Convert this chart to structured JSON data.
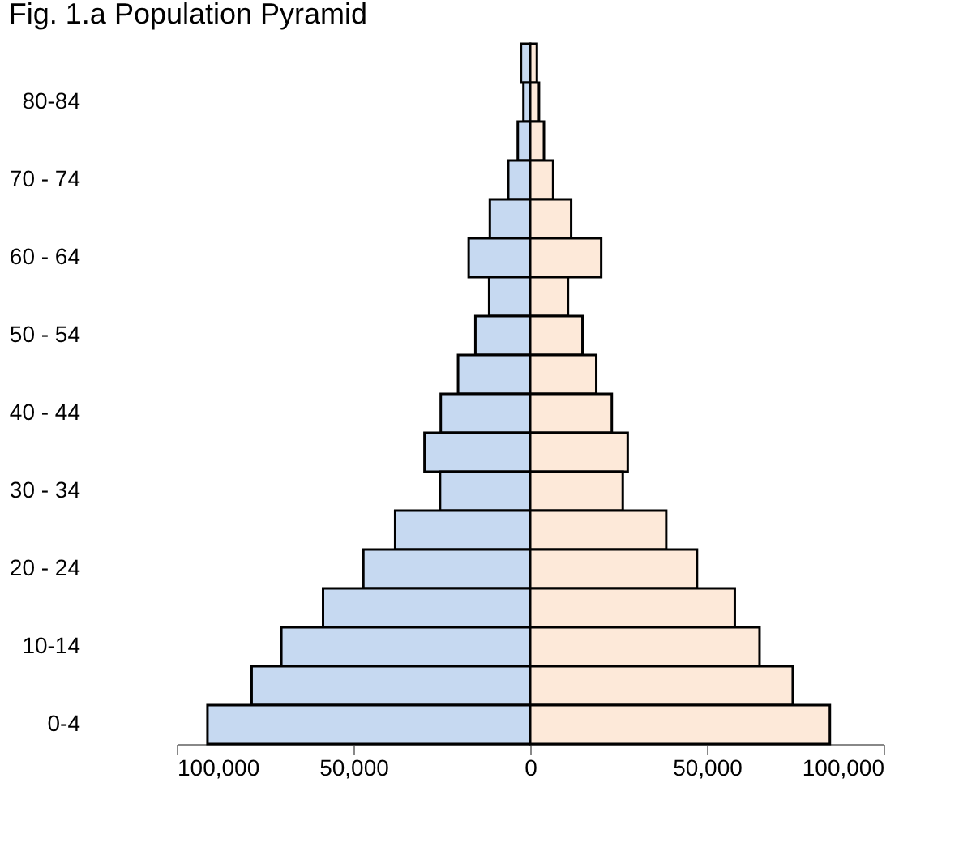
{
  "chart_data": {
    "type": "bar",
    "orientation": "horizontal",
    "title": "Fig. 1.a  Population Pyramid",
    "categories": [
      null,
      "80-84",
      null,
      "70 - 74",
      null,
      "60 - 64",
      null,
      "50 - 54",
      null,
      "40 - 44",
      null,
      "30 - 34",
      null,
      "20 - 24",
      null,
      "10-14",
      null,
      "0-4"
    ],
    "series": [
      {
        "color": "#c6d9f1",
        "values": [
          -2600,
          -1900,
          -3500,
          -6200,
          -11400,
          -17400,
          -11600,
          -15500,
          -20400,
          -25300,
          -29900,
          -25500,
          -38200,
          -47200,
          -58600,
          -70400,
          -78800,
          -91300
        ]
      },
      {
        "color": "#fde9d9",
        "values": [
          1900,
          2500,
          3900,
          6500,
          11600,
          20100,
          10700,
          14800,
          18700,
          23100,
          27600,
          26200,
          38500,
          47200,
          57900,
          64900,
          74300,
          84800
        ]
      }
    ],
    "xlim": [
      -100000,
      100000
    ],
    "xticks": [
      {
        "value": -100000,
        "label": "100,000"
      },
      {
        "value": -50000,
        "label": "50,000"
      },
      0,
      {
        "value": 50000,
        "label": "50,000"
      },
      {
        "value": 100000,
        "label": "100,000"
      }
    ],
    "stacked": true,
    "grid": false,
    "legend": false
  }
}
